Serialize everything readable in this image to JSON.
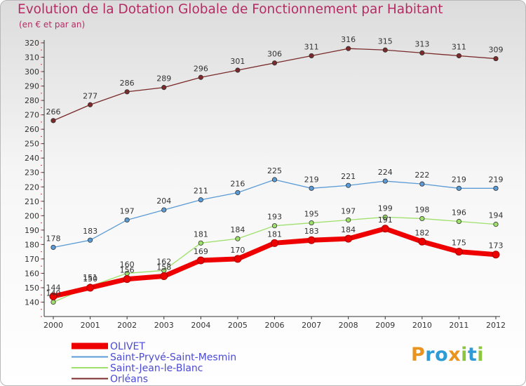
{
  "title": "Evolution de la Dotation Globale de Fonctionnement par Habitant",
  "subtitle": "(en € et par an)",
  "logo": {
    "chars": [
      "P",
      "r",
      "o",
      "x",
      "i",
      "t",
      "i"
    ],
    "colors": [
      "#e8941f",
      "#2f9bd6",
      "#2f9bd6",
      "#e8941f",
      "#8cc63f",
      "#2f9bd6",
      "#8cc63f"
    ]
  },
  "chart_data": {
    "type": "line",
    "title": "Evolution de la Dotation Globale de Fonctionnement par Habitant",
    "ylabel": "(en € et par an)",
    "xlabel": "",
    "ylim": [
      130,
      320
    ],
    "yticks": [
      140,
      150,
      160,
      170,
      180,
      190,
      200,
      210,
      220,
      230,
      240,
      250,
      260,
      270,
      280,
      290,
      300,
      310,
      320
    ],
    "grid": false,
    "legend": "bottom-left",
    "categories": [
      "2000",
      "2001",
      "2002",
      "2003",
      "2004",
      "2005",
      "2006",
      "2007",
      "2008",
      "2009",
      "2010",
      "2011",
      "2012"
    ],
    "series": [
      {
        "name": "Orléans",
        "color": "#7a2a2a",
        "values": [
          266,
          277,
          286,
          289,
          296,
          301,
          306,
          311,
          316,
          315,
          313,
          311,
          309
        ]
      },
      {
        "name": "Saint-Pryvé-Saint-Mesmin",
        "color": "#5b9bd5",
        "values": [
          178,
          183,
          197,
          204,
          211,
          216,
          225,
          219,
          221,
          224,
          222,
          219,
          219
        ]
      },
      {
        "name": "Saint-Jean-le-Blanc",
        "color": "#9ee06b",
        "values": [
          140,
          151,
          160,
          162,
          181,
          184,
          193,
          195,
          197,
          199,
          198,
          196,
          194
        ]
      },
      {
        "name": "OLIVET",
        "color": "#ee0000",
        "values": [
          144,
          150,
          156,
          158,
          169,
          170,
          181,
          183,
          184,
          191,
          182,
          175,
          173
        ]
      }
    ],
    "legend_order": [
      "OLIVET",
      "Saint-Pryvé-Saint-Mesmin",
      "Saint-Jean-le-Blanc",
      "Orléans"
    ]
  }
}
